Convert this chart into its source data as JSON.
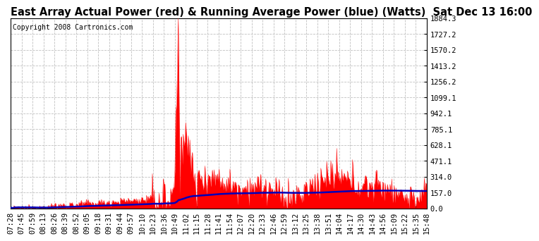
{
  "title": "East Array Actual Power (red) & Running Average Power (blue) (Watts)  Sat Dec 13 16:00",
  "copyright": "Copyright 2008 Cartronics.com",
  "background_color": "#ffffff",
  "plot_bg_color": "#ffffff",
  "grid_color": "#c0c0c0",
  "ytick_labels": [
    "0.0",
    "157.0",
    "314.0",
    "471.1",
    "628.1",
    "785.1",
    "942.1",
    "1099.1",
    "1256.2",
    "1413.2",
    "1570.2",
    "1727.2",
    "1884.3"
  ],
  "ytick_values": [
    0.0,
    157.0,
    314.0,
    471.1,
    628.1,
    785.1,
    942.1,
    1099.1,
    1256.2,
    1413.2,
    1570.2,
    1727.2,
    1884.3
  ],
  "ymax": 1884.3,
  "xtick_labels": [
    "07:28",
    "07:45",
    "07:59",
    "08:13",
    "08:26",
    "08:39",
    "08:52",
    "09:05",
    "09:18",
    "09:31",
    "09:44",
    "09:57",
    "10:10",
    "10:23",
    "10:36",
    "10:49",
    "11:02",
    "11:15",
    "11:28",
    "11:41",
    "11:54",
    "12:07",
    "12:20",
    "12:33",
    "12:46",
    "12:59",
    "13:12",
    "13:25",
    "13:38",
    "13:51",
    "14:04",
    "14:17",
    "14:30",
    "14:43",
    "14:56",
    "15:09",
    "15:22",
    "15:35",
    "15:48"
  ],
  "actual_color": "#ff0000",
  "avg_color": "#0000bb",
  "title_fontsize": 10.5,
  "copyright_fontsize": 7,
  "tick_fontsize": 7.5
}
